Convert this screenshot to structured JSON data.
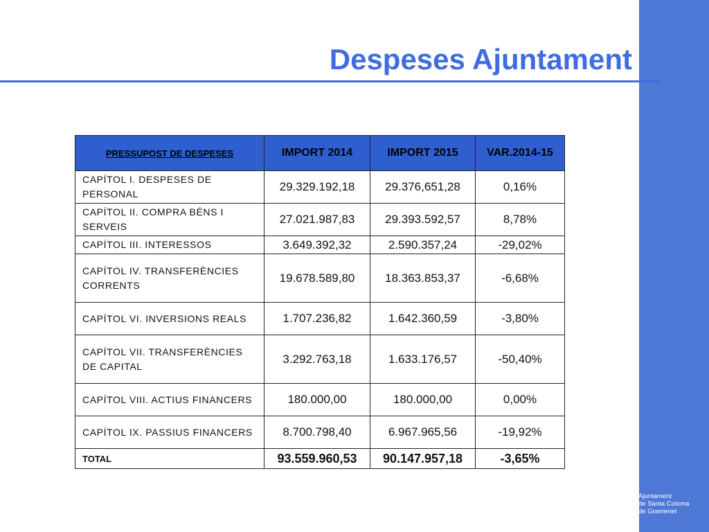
{
  "title": "Despeses Ajuntament",
  "table": {
    "headers": [
      "PRESSUPOST DE DESPESES",
      "IMPORT 2014",
      "IMPORT 2015",
      "VAR.2014-15"
    ],
    "rows": [
      {
        "label": "CAPÍTOL I. DESPESES DE PERSONAL",
        "import2014": "29.329.192,18",
        "import2015": "29.376,651,28",
        "var": "0,16%"
      },
      {
        "label": "CAPÍTOL II. COMPRA BÉNS I SERVEIS",
        "import2014": "27.021.987,83",
        "import2015": "29.393.592,57",
        "var": "8,78%"
      },
      {
        "label": "CAPÍTOL III. INTERESSOS",
        "import2014": "3.649.392,32",
        "import2015": "2.590.357,24",
        "var": "-29,02%"
      },
      {
        "label": "CAPÍTOL IV. TRANSFERÈNCIES CORRENTS",
        "import2014": "19.678.589,80",
        "import2015": "18.363.853,37",
        "var": "-6,68%"
      },
      {
        "label": "CAPÍTOL VI. INVERSIONS REALS",
        "import2014": "1.707.236,82",
        "import2015": "1.642.360,59",
        "var": "-3,80%"
      },
      {
        "label": "CAPÍTOL VII. TRANSFERÈNCIES DE CAPITAL",
        "import2014": "3.292.763,18",
        "import2015": "1.633.176,57",
        "var": "-50,40%"
      },
      {
        "label": "CAPÍTOL VIII. ACTIUS FINANCERS",
        "import2014": "180.000,00",
        "import2015": "180.000,00",
        "var": "0,00%"
      },
      {
        "label": "CAPÍTOL IX. PASSIUS FINANCERS",
        "import2014": "8.700.798,40",
        "import2015": "6.967.965,56",
        "var": "-19,92%"
      }
    ],
    "total": {
      "label": "TOTAL",
      "import2014": "93.559.960,53",
      "import2015": "90.147.957,18",
      "var": "-3,65%"
    }
  },
  "logo": {
    "icon": "coat-of-arms-icon",
    "lines": [
      "Ajuntament",
      "de Santa Coloma",
      "de Gramenet"
    ]
  },
  "colors": {
    "title": "#3d6de0",
    "band": "#4d78d6",
    "header_fill": "#2f5fcf"
  }
}
